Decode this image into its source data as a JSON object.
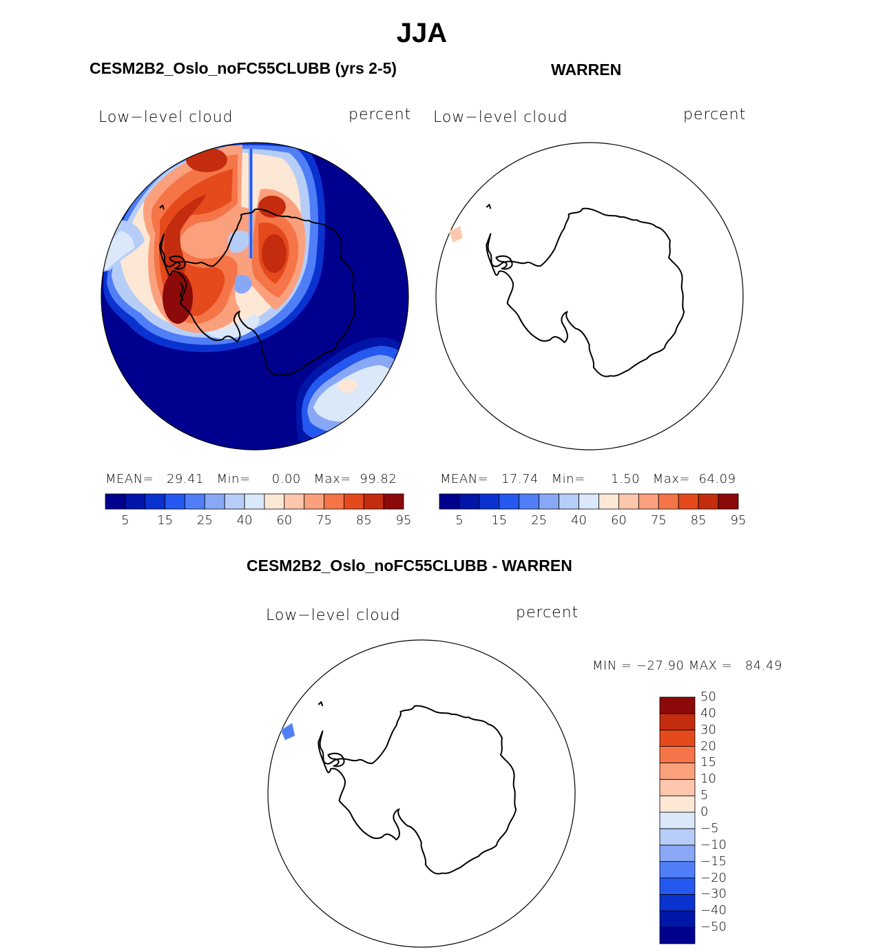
{
  "figure": {
    "season": "JJA",
    "panels": [
      {
        "title": "CESM2B2_Oslo_noFC55CLUBB (yrs 2-5)",
        "variable": "Low−level cloud",
        "units": "percent",
        "stats": {
          "mean_label": "MEAN=",
          "mean": "29.41",
          "min_label": "Min=",
          "min": "0.00",
          "max_label": "Max=",
          "max": "99.82"
        }
      },
      {
        "title": "WARREN",
        "variable": "Low−level cloud",
        "units": "percent",
        "stats": {
          "mean_label": "MEAN=",
          "mean": "17.74",
          "min_label": "Min=",
          "min": "1.50",
          "max_label": "Max=",
          "max": "64.09"
        }
      },
      {
        "title": "CESM2B2_Oslo_noFC55CLUBB - WARREN",
        "variable": "Low−level cloud",
        "units": "percent",
        "stats": {
          "min_label": "MIN =",
          "min": "−27.90",
          "max_label": "MAX =",
          "max": "84.49"
        }
      }
    ]
  },
  "colorbars": {
    "abs": {
      "colors": [
        "#00008f",
        "#0016a8",
        "#0a32cf",
        "#2558ef",
        "#4f7ef7",
        "#88a8f5",
        "#b6cdf8",
        "#dbe8fa",
        "#fde7d5",
        "#fcc7ac",
        "#fba07d",
        "#f57548",
        "#e44a1c",
        "#c32c0e",
        "#8c0a0a"
      ],
      "tick_labels": [
        "5",
        "15",
        "25",
        "40",
        "60",
        "75",
        "85",
        "95"
      ]
    },
    "diff": {
      "colors": [
        "#00008f",
        "#0016a8",
        "#0a32cf",
        "#2558ef",
        "#4f7ef7",
        "#88a8f5",
        "#b6cdf8",
        "#dbe8fa",
        "#fde7d5",
        "#fcc7ac",
        "#fba07d",
        "#f57548",
        "#e44a1c",
        "#c32c0e",
        "#8c0a0a"
      ],
      "tick_labels": [
        "−50",
        "−40",
        "−30",
        "−20",
        "−15",
        "−10",
        "−5",
        "0",
        "5",
        "10",
        "15",
        "20",
        "30",
        "40",
        "50"
      ]
    }
  },
  "colors": {
    "ocean_deep": "#00008f",
    "coastline": "#000000"
  }
}
